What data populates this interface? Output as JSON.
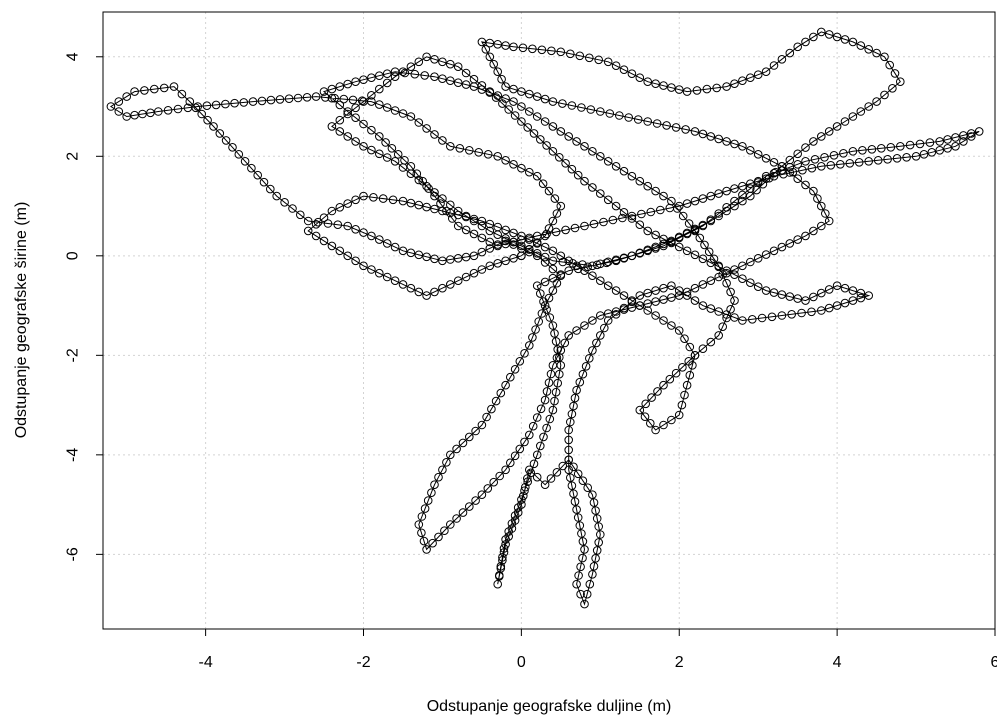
{
  "chart_data": {
    "type": "line",
    "title": "",
    "xlabel": "Odstupanje geografske duljine (m)",
    "ylabel": "Odstupanje geografske širine (m)",
    "xlim": [
      -5.3,
      6.0
    ],
    "ylim": [
      -7.5,
      4.9
    ],
    "x_ticks": [
      "-4",
      "-2",
      "0",
      "2",
      "4",
      "6"
    ],
    "y_ticks": [
      "-6",
      "-4",
      "-2",
      "0",
      "2",
      "4"
    ],
    "grid": true,
    "legend": "none",
    "marker": "open-circle",
    "line_color": "#000000",
    "grid_color": "#d3d3d3",
    "series": [
      {
        "points": [
          [
            0.0,
            0.0
          ],
          [
            0.3,
            0.4
          ],
          [
            0.5,
            1.0
          ],
          [
            0.2,
            1.6
          ],
          [
            -0.3,
            2.0
          ],
          [
            -0.9,
            2.2
          ],
          [
            -1.4,
            2.8
          ],
          [
            -1.9,
            3.1
          ],
          [
            -2.6,
            3.2
          ],
          [
            -3.4,
            3.1
          ],
          [
            -4.1,
            3.0
          ],
          [
            -4.6,
            2.9
          ],
          [
            -5.0,
            2.8
          ],
          [
            -5.2,
            3.0
          ],
          [
            -4.9,
            3.3
          ],
          [
            -4.4,
            3.4
          ],
          [
            -4.2,
            3.1
          ],
          [
            -3.9,
            2.6
          ],
          [
            -3.5,
            1.9
          ],
          [
            -3.1,
            1.2
          ],
          [
            -2.7,
            0.7
          ],
          [
            -2.2,
            0.6
          ],
          [
            -1.9,
            0.4
          ],
          [
            -1.5,
            0.1
          ],
          [
            -1.0,
            -0.1
          ],
          [
            -0.6,
            0.0
          ],
          [
            -0.2,
            0.3
          ],
          [
            0.2,
            0.0
          ],
          [
            0.5,
            -0.4
          ],
          [
            0.3,
            -1.0
          ],
          [
            0.1,
            -1.8
          ],
          [
            -0.2,
            -2.6
          ],
          [
            -0.5,
            -3.4
          ],
          [
            -0.9,
            -4.0
          ],
          [
            -1.1,
            -4.6
          ],
          [
            -1.3,
            -5.4
          ],
          [
            -1.2,
            -5.9
          ],
          [
            -0.9,
            -5.4
          ],
          [
            -0.5,
            -4.8
          ],
          [
            -0.2,
            -4.3
          ],
          [
            0.1,
            -3.6
          ],
          [
            0.3,
            -2.9
          ],
          [
            0.4,
            -2.2
          ],
          [
            0.6,
            -1.6
          ],
          [
            1.0,
            -1.2
          ],
          [
            1.5,
            -1.0
          ],
          [
            2.0,
            -0.8
          ],
          [
            2.4,
            -0.5
          ],
          [
            2.8,
            -0.2
          ],
          [
            3.2,
            0.1
          ],
          [
            3.6,
            0.4
          ],
          [
            3.9,
            0.7
          ],
          [
            3.7,
            1.3
          ],
          [
            3.3,
            1.8
          ],
          [
            2.8,
            2.2
          ],
          [
            2.2,
            2.5
          ],
          [
            1.6,
            2.7
          ],
          [
            1.0,
            2.9
          ],
          [
            0.4,
            3.1
          ],
          [
            -0.2,
            3.4
          ],
          [
            -0.5,
            4.3
          ],
          [
            -0.1,
            4.2
          ],
          [
            0.5,
            4.1
          ],
          [
            1.1,
            3.9
          ],
          [
            1.6,
            3.5
          ],
          [
            2.1,
            3.3
          ],
          [
            2.6,
            3.4
          ],
          [
            3.1,
            3.7
          ],
          [
            3.5,
            4.2
          ],
          [
            3.8,
            4.5
          ],
          [
            4.2,
            4.3
          ],
          [
            4.6,
            4.0
          ],
          [
            4.8,
            3.5
          ],
          [
            4.5,
            3.1
          ],
          [
            4.1,
            2.7
          ],
          [
            3.7,
            2.3
          ],
          [
            3.3,
            1.8
          ],
          [
            2.9,
            1.2
          ],
          [
            2.4,
            0.7
          ],
          [
            1.9,
            0.3
          ],
          [
            1.4,
            0.0
          ],
          [
            0.9,
            -0.2
          ],
          [
            0.4,
            -0.1
          ],
          [
            0.0,
            0.2
          ],
          [
            -0.4,
            0.5
          ],
          [
            -0.8,
            0.9
          ],
          [
            -1.2,
            1.4
          ],
          [
            -1.6,
            1.9
          ],
          [
            -2.0,
            2.2
          ],
          [
            -2.4,
            2.6
          ],
          [
            -2.0,
            3.1
          ],
          [
            -1.6,
            3.6
          ],
          [
            -1.2,
            4.0
          ],
          [
            -0.8,
            3.8
          ],
          [
            -0.4,
            3.3
          ],
          [
            0.0,
            2.7
          ],
          [
            0.4,
            2.1
          ],
          [
            0.8,
            1.5
          ],
          [
            1.2,
            1.0
          ],
          [
            1.6,
            0.5
          ],
          [
            2.1,
            0.1
          ],
          [
            2.6,
            -0.3
          ],
          [
            3.1,
            -0.7
          ],
          [
            3.6,
            -0.9
          ],
          [
            4.0,
            -0.6
          ],
          [
            4.4,
            -0.8
          ],
          [
            4.2,
            -0.9
          ],
          [
            3.8,
            -1.1
          ],
          [
            3.3,
            -1.2
          ],
          [
            2.8,
            -1.3
          ],
          [
            2.3,
            -1.0
          ],
          [
            1.9,
            -0.6
          ],
          [
            1.5,
            -0.8
          ],
          [
            1.1,
            -1.3
          ],
          [
            0.9,
            -1.9
          ],
          [
            0.7,
            -2.7
          ],
          [
            0.6,
            -3.5
          ],
          [
            0.6,
            -4.3
          ],
          [
            0.7,
            -5.1
          ],
          [
            0.8,
            -5.9
          ],
          [
            0.7,
            -6.6
          ],
          [
            0.8,
            -7.0
          ],
          [
            0.9,
            -6.4
          ],
          [
            1.0,
            -5.6
          ],
          [
            0.9,
            -4.8
          ],
          [
            0.6,
            -4.1
          ],
          [
            0.3,
            -4.6
          ],
          [
            0.1,
            -4.3
          ],
          [
            0.0,
            -5.0
          ],
          [
            -0.2,
            -5.8
          ],
          [
            -0.3,
            -6.6
          ],
          [
            -0.2,
            -5.7
          ],
          [
            0.0,
            -4.9
          ],
          [
            0.2,
            -4.0
          ],
          [
            0.4,
            -3.1
          ],
          [
            0.5,
            -2.2
          ],
          [
            0.4,
            -1.4
          ],
          [
            0.2,
            -0.6
          ],
          [
            0.6,
            -0.3
          ],
          [
            1.2,
            -0.1
          ],
          [
            1.8,
            0.2
          ],
          [
            2.3,
            0.6
          ],
          [
            2.7,
            1.1
          ],
          [
            3.1,
            1.6
          ],
          [
            3.6,
            1.9
          ],
          [
            4.2,
            2.1
          ],
          [
            4.8,
            2.2
          ],
          [
            5.3,
            2.3
          ],
          [
            5.8,
            2.5
          ],
          [
            5.5,
            2.2
          ],
          [
            5.0,
            2.0
          ],
          [
            4.4,
            1.9
          ],
          [
            3.8,
            1.8
          ],
          [
            3.2,
            1.6
          ],
          [
            2.6,
            1.3
          ],
          [
            2.0,
            1.0
          ],
          [
            1.4,
            0.8
          ],
          [
            0.8,
            0.6
          ],
          [
            0.2,
            0.4
          ],
          [
            -0.3,
            0.2
          ],
          [
            -0.8,
            0.6
          ],
          [
            -1.1,
            1.2
          ],
          [
            -1.4,
            1.8
          ],
          [
            -1.8,
            2.4
          ],
          [
            -2.2,
            2.9
          ],
          [
            -2.5,
            3.3
          ],
          [
            -2.1,
            3.5
          ],
          [
            -1.6,
            3.7
          ],
          [
            -1.1,
            3.6
          ],
          [
            -0.6,
            3.4
          ],
          [
            -0.1,
            3.1
          ],
          [
            0.3,
            2.7
          ],
          [
            0.7,
            2.3
          ],
          [
            1.1,
            1.9
          ],
          [
            1.5,
            1.5
          ],
          [
            1.9,
            1.1
          ],
          [
            2.2,
            0.5
          ],
          [
            2.5,
            -0.2
          ],
          [
            2.7,
            -0.9
          ],
          [
            2.5,
            -1.6
          ],
          [
            2.2,
            -2.0
          ],
          [
            1.8,
            -2.6
          ],
          [
            1.5,
            -3.1
          ],
          [
            1.7,
            -3.5
          ],
          [
            2.0,
            -3.2
          ],
          [
            2.1,
            -2.6
          ],
          [
            2.2,
            -2.0
          ],
          [
            2.0,
            -1.5
          ],
          [
            1.6,
            -1.1
          ],
          [
            1.2,
            -0.7
          ],
          [
            0.8,
            -0.3
          ],
          [
            0.4,
            0.1
          ],
          [
            0.0,
            0.4
          ],
          [
            -0.5,
            0.7
          ],
          [
            -1.0,
            0.9
          ],
          [
            -1.5,
            1.1
          ],
          [
            -2.0,
            1.2
          ],
          [
            -2.4,
            0.9
          ],
          [
            -2.7,
            0.5
          ],
          [
            -2.4,
            0.2
          ],
          [
            -2.0,
            -0.2
          ],
          [
            -1.6,
            -0.5
          ],
          [
            -1.2,
            -0.8
          ],
          [
            -0.8,
            -0.5
          ],
          [
            -0.4,
            -0.2
          ],
          [
            0.0,
            0.0
          ]
        ]
      }
    ]
  }
}
